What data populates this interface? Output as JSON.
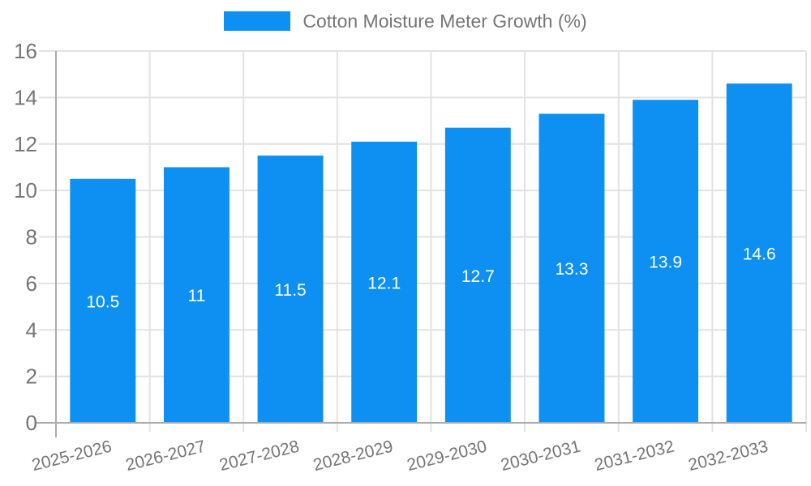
{
  "colors": {
    "bar": "#0d90f2",
    "grid": "#e2e2e2",
    "axis": "#ababab",
    "text_muted": "#757575",
    "bar_label_text": "#ffffff"
  },
  "legend": {
    "label": "Cotton Moisture Meter Growth (%)"
  },
  "chart_data": {
    "type": "bar",
    "title": "Cotton Moisture Meter Growth (%)",
    "categories": [
      "2025-2026",
      "2026-2027",
      "2027-2028",
      "2028-2029",
      "2029-2030",
      "2030-2031",
      "2031-2032",
      "2032-2033"
    ],
    "values": [
      10.5,
      11,
      11.5,
      12.1,
      12.7,
      13.3,
      13.9,
      14.6
    ],
    "value_labels": [
      "10.5",
      "11",
      "11.5",
      "12.1",
      "12.7",
      "13.3",
      "13.9",
      "14.6"
    ],
    "xlabel": "",
    "ylabel": "",
    "ylim": [
      0,
      16
    ],
    "yticks": [
      0,
      2,
      4,
      6,
      8,
      10,
      12,
      14,
      16
    ],
    "ytick_labels": [
      "0",
      "2",
      "4",
      "6",
      "8",
      "10",
      "12",
      "14",
      "16"
    ],
    "grid": true,
    "legend_position": "top",
    "value_label_position": "inside-center",
    "xtick_rotation_deg": -14
  }
}
